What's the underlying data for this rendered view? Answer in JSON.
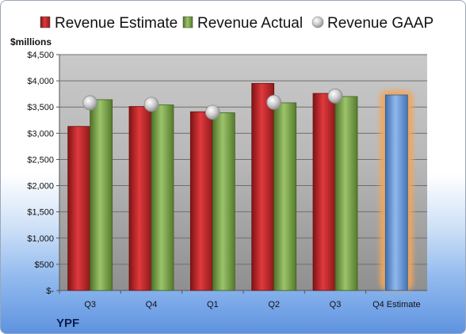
{
  "chart_data": {
    "type": "bar",
    "unit_label": "$millions",
    "ticker": "YPF",
    "categories": [
      "Q3",
      "Q4",
      "Q1",
      "Q2",
      "Q3",
      "Q4 Estimate"
    ],
    "series": [
      {
        "name": "Revenue Estimate",
        "kind": "bar",
        "color": "#c0282c",
        "values": [
          3130,
          3510,
          3410,
          3950,
          3760,
          null
        ]
      },
      {
        "name": "Revenue Actual",
        "kind": "bar",
        "color": "#7aa548",
        "values": [
          3640,
          3540,
          3390,
          3580,
          3700,
          3730
        ],
        "highlight_color": "#6a9edb",
        "highlight_index": 5
      },
      {
        "name": "Revenue GAAP",
        "kind": "marker",
        "color": "#b4b4b4",
        "values": [
          3580,
          3550,
          3400,
          3590,
          3710,
          null
        ]
      }
    ],
    "yticks": [
      "$4,500",
      "$4,000",
      "$3,500",
      "$3,000",
      "$2,500",
      "$2,000",
      "$1,500",
      "$1,000",
      "$500",
      "$-"
    ],
    "ylim": [
      0,
      4500
    ],
    "ytick_step": 500,
    "grid": true,
    "legend_position": "top"
  }
}
